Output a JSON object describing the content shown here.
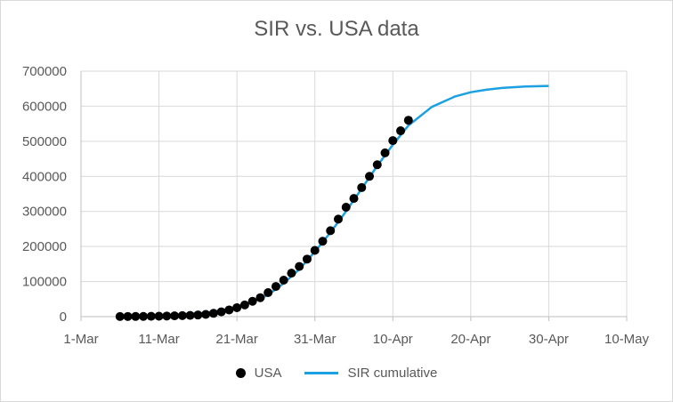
{
  "chart_data": {
    "type": "line",
    "title": "SIR vs. USA data",
    "xlabel": "",
    "ylabel": "",
    "x_axis": {
      "type": "date",
      "range": [
        "2020-03-01",
        "2020-05-10"
      ],
      "ticks": [
        "2020-03-01",
        "2020-03-11",
        "2020-03-21",
        "2020-03-31",
        "2020-04-10",
        "2020-04-20",
        "2020-04-30",
        "2020-05-10"
      ],
      "tick_labels": [
        "1-Mar",
        "11-Mar",
        "21-Mar",
        "31-Mar",
        "10-Apr",
        "20-Apr",
        "30-Apr",
        "10-May"
      ]
    },
    "ylim": [
      0,
      700000
    ],
    "y_ticks": [
      0,
      100000,
      200000,
      300000,
      400000,
      500000,
      600000,
      700000
    ],
    "y_tick_labels": [
      "0",
      "100000",
      "200000",
      "300000",
      "400000",
      "500000",
      "600000",
      "700000"
    ],
    "grid": true,
    "legend": "bottom",
    "series": [
      {
        "name": "USA",
        "kind": "scatter",
        "color": "#000000",
        "points": [
          [
            "2020-03-06",
            300
          ],
          [
            "2020-03-07",
            400
          ],
          [
            "2020-03-08",
            550
          ],
          [
            "2020-03-09",
            700
          ],
          [
            "2020-03-10",
            1000
          ],
          [
            "2020-03-11",
            1300
          ],
          [
            "2020-03-12",
            1700
          ],
          [
            "2020-03-13",
            2200
          ],
          [
            "2020-03-14",
            2900
          ],
          [
            "2020-03-15",
            3500
          ],
          [
            "2020-03-16",
            4600
          ],
          [
            "2020-03-17",
            6400
          ],
          [
            "2020-03-18",
            9400
          ],
          [
            "2020-03-19",
            13700
          ],
          [
            "2020-03-20",
            19100
          ],
          [
            "2020-03-21",
            25500
          ],
          [
            "2020-03-22",
            33300
          ],
          [
            "2020-03-23",
            43700
          ],
          [
            "2020-03-24",
            54000
          ],
          [
            "2020-03-25",
            68500
          ],
          [
            "2020-03-26",
            86000
          ],
          [
            "2020-03-27",
            104000
          ],
          [
            "2020-03-28",
            124000
          ],
          [
            "2020-03-29",
            143000
          ],
          [
            "2020-03-30",
            164000
          ],
          [
            "2020-03-31",
            189000
          ],
          [
            "2020-04-01",
            215000
          ],
          [
            "2020-04-02",
            245000
          ],
          [
            "2020-04-03",
            278000
          ],
          [
            "2020-04-04",
            312000
          ],
          [
            "2020-04-05",
            337000
          ],
          [
            "2020-04-06",
            368000
          ],
          [
            "2020-04-07",
            400000
          ],
          [
            "2020-04-08",
            433000
          ],
          [
            "2020-04-09",
            467000
          ],
          [
            "2020-04-10",
            502000
          ],
          [
            "2020-04-11",
            530000
          ],
          [
            "2020-04-12",
            560000
          ]
        ]
      },
      {
        "name": "SIR cumulative",
        "kind": "line",
        "color": "#1ba1e2",
        "points": [
          [
            "2020-03-06",
            500
          ],
          [
            "2020-03-09",
            1500
          ],
          [
            "2020-03-12",
            4000
          ],
          [
            "2020-03-15",
            8000
          ],
          [
            "2020-03-17",
            11000
          ],
          [
            "2020-03-19",
            18000
          ],
          [
            "2020-03-21",
            28000
          ],
          [
            "2020-03-23",
            42000
          ],
          [
            "2020-03-25",
            62000
          ],
          [
            "2020-03-27",
            95000
          ],
          [
            "2020-03-29",
            135000
          ],
          [
            "2020-03-31",
            185000
          ],
          [
            "2020-04-02",
            240000
          ],
          [
            "2020-04-04",
            300000
          ],
          [
            "2020-04-06",
            365000
          ],
          [
            "2020-04-08",
            430000
          ],
          [
            "2020-04-10",
            490000
          ],
          [
            "2020-04-12",
            545000
          ],
          [
            "2020-04-15",
            598000
          ],
          [
            "2020-04-18",
            628000
          ],
          [
            "2020-04-20",
            640000
          ],
          [
            "2020-04-22",
            647000
          ],
          [
            "2020-04-24",
            652000
          ],
          [
            "2020-04-27",
            656000
          ],
          [
            "2020-04-30",
            658000
          ]
        ]
      }
    ]
  }
}
